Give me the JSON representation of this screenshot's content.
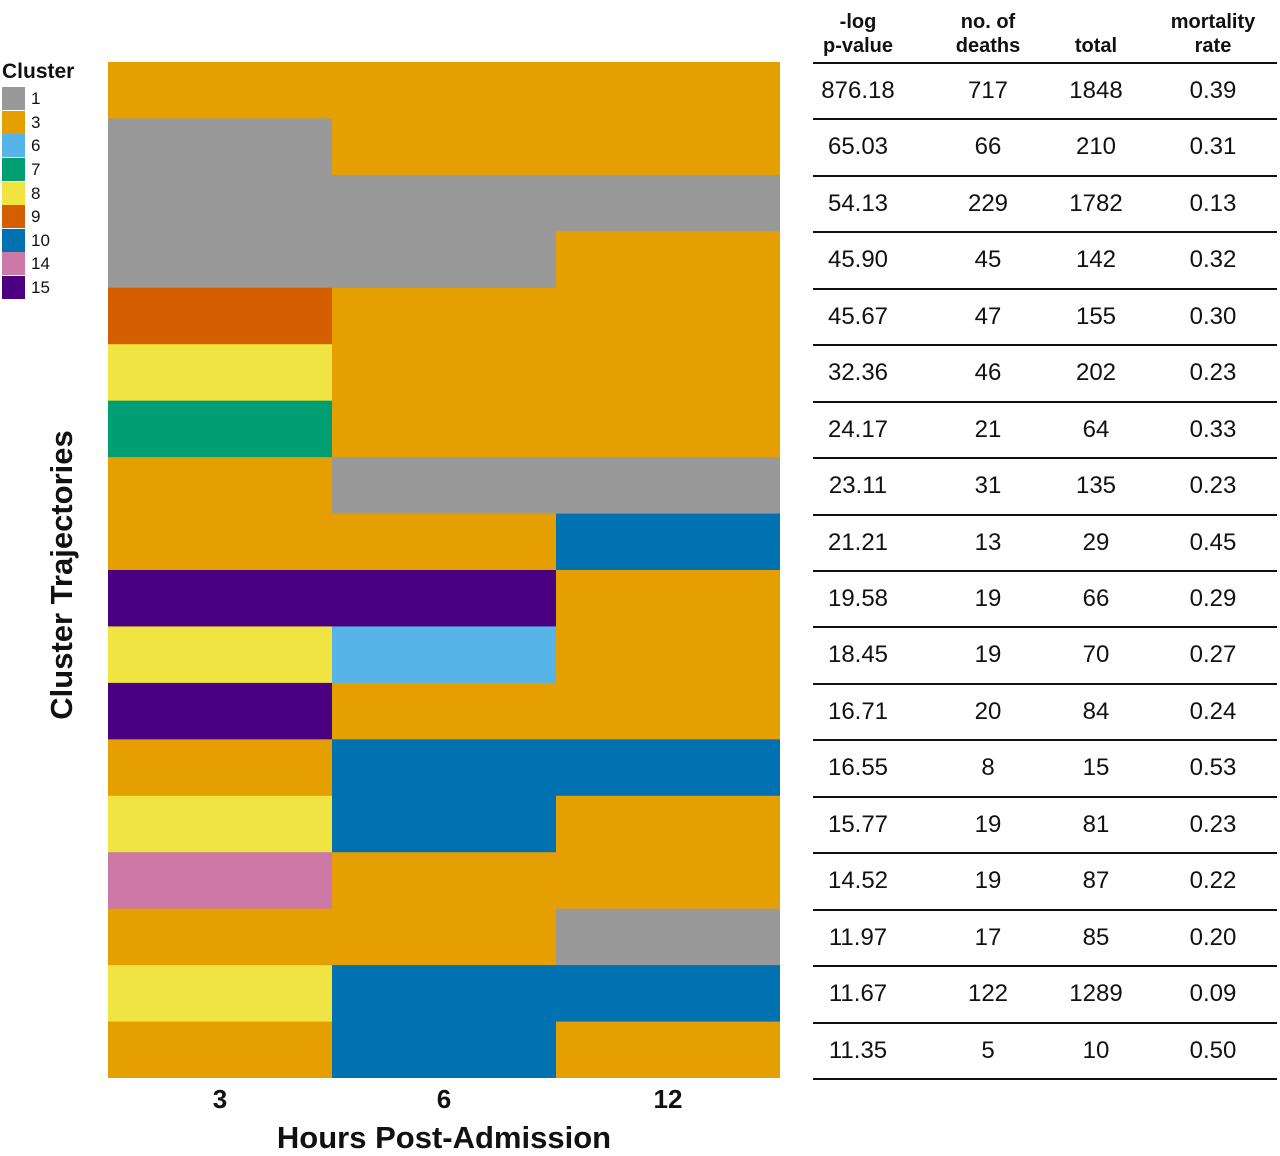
{
  "chart_data": {
    "type": "heatmap",
    "xlabel": "Hours Post-Admission",
    "ylabel": "Cluster Trajectories",
    "x": [
      "3",
      "6",
      "12"
    ],
    "legend": {
      "title": "Cluster",
      "placement": "top-left",
      "items": [
        {
          "label": "1",
          "color": "#999999"
        },
        {
          "label": "3",
          "color": "#E69F00"
        },
        {
          "label": "6",
          "color": "#56B4E9"
        },
        {
          "label": "7",
          "color": "#009E73"
        },
        {
          "label": "8",
          "color": "#F0E442"
        },
        {
          "label": "9",
          "color": "#D55E00"
        },
        {
          "label": "10",
          "color": "#0072B2"
        },
        {
          "label": "14",
          "color": "#CC79A7"
        },
        {
          "label": "15",
          "color": "#4B0082"
        }
      ]
    },
    "trajectories": [
      [
        "3",
        "3",
        "3"
      ],
      [
        "1",
        "3",
        "3"
      ],
      [
        "1",
        "1",
        "1"
      ],
      [
        "1",
        "1",
        "3"
      ],
      [
        "9",
        "3",
        "3"
      ],
      [
        "8",
        "3",
        "3"
      ],
      [
        "7",
        "3",
        "3"
      ],
      [
        "3",
        "1",
        "1"
      ],
      [
        "3",
        "3",
        "10"
      ],
      [
        "15",
        "15",
        "3"
      ],
      [
        "8",
        "6",
        "3"
      ],
      [
        "15",
        "3",
        "3"
      ],
      [
        "3",
        "10",
        "10"
      ],
      [
        "8",
        "10",
        "3"
      ],
      [
        "14",
        "3",
        "3"
      ],
      [
        "3",
        "3",
        "1"
      ],
      [
        "8",
        "10",
        "10"
      ],
      [
        "3",
        "10",
        "3"
      ]
    ],
    "table": {
      "columns": [
        "-log\np-value",
        "no. of\ndeaths",
        "total",
        "mortality\nrate"
      ],
      "rows": [
        [
          "876.18",
          "717",
          "1848",
          "0.39"
        ],
        [
          "65.03",
          "66",
          "210",
          "0.31"
        ],
        [
          "54.13",
          "229",
          "1782",
          "0.13"
        ],
        [
          "45.90",
          "45",
          "142",
          "0.32"
        ],
        [
          "45.67",
          "47",
          "155",
          "0.30"
        ],
        [
          "32.36",
          "46",
          "202",
          "0.23"
        ],
        [
          "24.17",
          "21",
          "64",
          "0.33"
        ],
        [
          "23.11",
          "31",
          "135",
          "0.23"
        ],
        [
          "21.21",
          "13",
          "29",
          "0.45"
        ],
        [
          "19.58",
          "19",
          "66",
          "0.29"
        ],
        [
          "18.45",
          "19",
          "70",
          "0.27"
        ],
        [
          "16.71",
          "20",
          "84",
          "0.24"
        ],
        [
          "16.55",
          "8",
          "15",
          "0.53"
        ],
        [
          "15.77",
          "19",
          "81",
          "0.23"
        ],
        [
          "14.52",
          "19",
          "87",
          "0.22"
        ],
        [
          "11.97",
          "17",
          "85",
          "0.20"
        ],
        [
          "11.67",
          "122",
          "1289",
          "0.09"
        ],
        [
          "11.35",
          "5",
          "10",
          "0.50"
        ]
      ]
    }
  }
}
